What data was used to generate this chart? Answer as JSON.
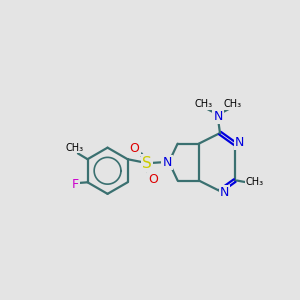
{
  "background_color": "#e4e4e4",
  "bond_color": "#3a7070",
  "nitrogen_color": "#0000dd",
  "fluorine_color": "#cc00cc",
  "oxygen_color": "#dd0000",
  "sulfur_color": "#cccc00",
  "line_width": 1.6,
  "figsize": [
    3.0,
    3.0
  ],
  "dpi": 100,
  "xlim": [
    -1,
    11
  ],
  "ylim": [
    -1,
    11
  ]
}
